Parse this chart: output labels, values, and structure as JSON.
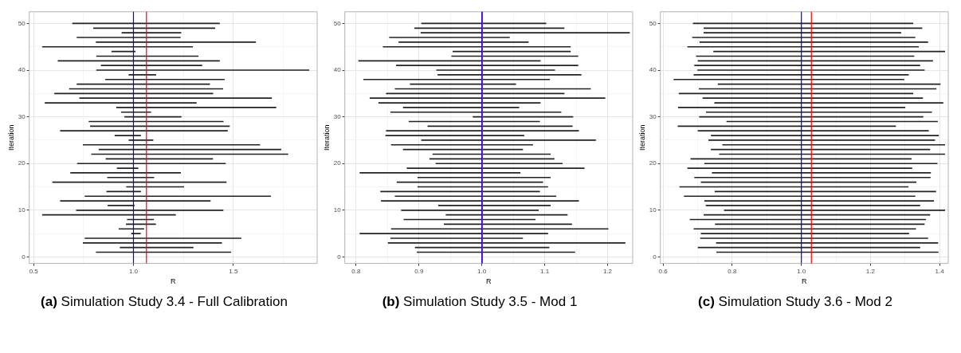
{
  "chart_data": [
    {
      "type": "bar",
      "orientation": "horizontal",
      "title": "(a) Simulation Study 3.4 - Full Calibration",
      "xlabel": "R",
      "ylabel": "Iteration",
      "grid": true,
      "color": "#222222",
      "xlim": [
        0.478,
        1.92
      ],
      "xticks": [
        0.5,
        {
          "value": 0.75,
          "label": null
        },
        {
          "value": 1,
          "label": "1.0"
        },
        {
          "value": 1.25,
          "label": null
        },
        1.5,
        {
          "value": 1.75,
          "label": null
        }
      ],
      "ylim": [
        -1.4,
        52.5
      ],
      "yticks": [
        0,
        {
          "value": 5,
          "label": null
        },
        10,
        {
          "value": 15,
          "label": null
        },
        20,
        {
          "value": 25,
          "label": null
        },
        30,
        {
          "value": 35,
          "label": null
        },
        40,
        {
          "value": 45,
          "label": null
        },
        50
      ],
      "x": [
        1,
        2,
        3,
        4,
        5,
        6,
        7,
        8,
        9,
        10,
        11,
        12,
        13,
        14,
        15,
        16,
        17,
        18,
        19,
        20,
        21,
        22,
        23,
        24,
        25,
        26,
        27,
        28,
        29,
        30,
        31,
        32,
        33,
        34,
        35,
        36,
        37,
        38,
        39,
        40,
        41,
        42,
        43,
        44,
        45,
        46,
        47,
        48,
        49,
        50
      ],
      "base": [
        0.813,
        0.933,
        0.748,
        0.757,
        0.99,
        0.927,
        0.964,
        0.969,
        0.544,
        0.714,
        0.872,
        0.634,
        0.757,
        0.866,
        0.965,
        0.595,
        0.87,
        0.685,
        0.918,
        0.719,
        0.862,
        0.79,
        0.827,
        0.748,
        0.977,
        0.907,
        0.634,
        0.784,
        0.777,
        0.956,
        0.939,
        0.915,
        0.557,
        0.73,
        0.605,
        0.679,
        0.717,
        0.86,
        0.977,
        0.815,
        0.838,
        0.622,
        0.815,
        0.891,
        0.544,
        0.813,
        0.717,
        0.942,
        0.8,
        0.695
      ],
      "values": [
        0.675,
        0.366,
        0.694,
        0.782,
        0.045,
        0.125,
        0.147,
        0.132,
        0.667,
        0.735,
        0.132,
        0.751,
        0.93,
        0.17,
        0.287,
        0.87,
        0.232,
        0.551,
        0.105,
        0.742,
        0.535,
        0.984,
        0.912,
        0.885,
        0.121,
        0.129,
        0.837,
        0.697,
        0.673,
        0.283,
        0.148,
        0.799,
        0.758,
        0.962,
        0.793,
        0.769,
        0.665,
        0.595,
        0.135,
        1.064,
        0.505,
        0.809,
        0.509,
        0.118,
        0.752,
        0.799,
        0.518,
        0.296,
        0.608,
        0.736
      ],
      "ref_lines": [
        {
          "axis": "x",
          "value": 1,
          "color": "#0000ff"
        },
        {
          "axis": "x",
          "value": 1.065,
          "color": "#ff0000"
        }
      ]
    },
    {
      "type": "bar",
      "orientation": "horizontal",
      "title": "(b) Simulation Study 3.5 - Mod 1",
      "xlabel": "R",
      "ylabel": "Iteration",
      "grid": true,
      "color": "#222222",
      "xlim": [
        0.782,
        1.24
      ],
      "xticks": [
        0.8,
        {
          "value": 0.85,
          "label": null
        },
        0.9,
        {
          "value": 0.95,
          "label": null
        },
        {
          "value": 1,
          "label": "1.0"
        },
        {
          "value": 1.05,
          "label": null
        },
        1.1,
        {
          "value": 1.15,
          "label": null
        },
        1.2
      ],
      "ylim": [
        -1.4,
        52.5
      ],
      "yticks": [
        0,
        {
          "value": 5,
          "label": null
        },
        10,
        {
          "value": 15,
          "label": null
        },
        20,
        {
          "value": 25,
          "label": null
        },
        30,
        {
          "value": 35,
          "label": null
        },
        40,
        {
          "value": 45,
          "label": null
        },
        50
      ],
      "x": [
        1,
        2,
        3,
        4,
        5,
        6,
        7,
        8,
        9,
        10,
        11,
        12,
        13,
        14,
        15,
        16,
        17,
        18,
        19,
        20,
        21,
        22,
        23,
        24,
        25,
        26,
        27,
        28,
        29,
        30,
        31,
        32,
        33,
        34,
        35,
        36,
        37,
        38,
        39,
        40,
        41,
        42,
        43,
        44,
        45,
        46,
        47,
        48,
        49,
        50
      ],
      "base": [
        0.897,
        0.894,
        0.851,
        0.855,
        0.806,
        0.856,
        0.94,
        0.876,
        0.943,
        0.872,
        0.931,
        0.84,
        0.862,
        0.839,
        0.898,
        0.865,
        0.898,
        0.806,
        0.881,
        0.927,
        0.917,
        0.922,
        0.875,
        0.856,
        0.904,
        0.847,
        0.848,
        0.914,
        0.884,
        0.986,
        0.855,
        0.875,
        0.836,
        0.822,
        0.848,
        0.862,
        0.886,
        0.812,
        0.93,
        0.928,
        0.864,
        0.804,
        0.952,
        0.954,
        0.843,
        0.868,
        0.853,
        0.903,
        0.893,
        0.904
      ],
      "values": [
        0.251,
        0.213,
        0.377,
        0.21,
        0.299,
        0.345,
        0.203,
        0.209,
        0.193,
        0.218,
        0.178,
        0.314,
        0.256,
        0.253,
        0.207,
        0.232,
        0.211,
        0.255,
        0.282,
        0.201,
        0.198,
        0.187,
        0.19,
        0.225,
        0.277,
        0.22,
        0.306,
        0.23,
        0.208,
        0.159,
        0.271,
        0.184,
        0.257,
        0.374,
        0.283,
        0.311,
        0.168,
        0.296,
        0.228,
        0.188,
        0.289,
        0.289,
        0.201,
        0.187,
        0.298,
        0.206,
        0.191,
        0.332,
        0.238,
        0.198
      ],
      "ref_lines": [
        {
          "axis": "x",
          "value": 1,
          "color": "#0000ff"
        },
        {
          "axis": "x",
          "value": 1.001,
          "color": "#ff0000"
        }
      ]
    },
    {
      "type": "bar",
      "orientation": "horizontal",
      "title": "(c) Simulation Study 3.6 - Mod 2",
      "xlabel": "R",
      "ylabel": "Iteration",
      "grid": true,
      "color": "#222222",
      "xlim": [
        0.592,
        1.425
      ],
      "xticks": [
        0.6,
        {
          "value": 0.7,
          "label": null
        },
        0.8,
        {
          "value": 0.9,
          "label": null
        },
        {
          "value": 1,
          "label": "1.0"
        },
        {
          "value": 1.1,
          "label": null
        },
        1.2,
        {
          "value": 1.3,
          "label": null
        },
        1.4
      ],
      "ylim": [
        -1.4,
        52.5
      ],
      "yticks": [
        0,
        {
          "value": 5,
          "label": null
        },
        10,
        {
          "value": 15,
          "label": null
        },
        20,
        {
          "value": 25,
          "label": null
        },
        30,
        {
          "value": 35,
          "label": null
        },
        40,
        {
          "value": 45,
          "label": null
        },
        50
      ],
      "x": [
        1,
        2,
        3,
        4,
        5,
        6,
        7,
        8,
        9,
        10,
        11,
        12,
        13,
        14,
        15,
        16,
        17,
        18,
        19,
        20,
        21,
        22,
        23,
        24,
        25,
        26,
        27,
        28,
        29,
        30,
        31,
        32,
        33,
        34,
        35,
        36,
        37,
        38,
        39,
        40,
        41,
        42,
        43,
        44,
        45,
        46,
        47,
        48,
        49,
        50
      ],
      "base": [
        0.755,
        0.701,
        0.754,
        0.708,
        0.71,
        0.689,
        0.751,
        0.678,
        0.718,
        0.777,
        0.724,
        0.72,
        0.661,
        0.75,
        0.648,
        0.71,
        0.691,
        0.742,
        0.671,
        0.72,
        0.68,
        0.763,
        0.739,
        0.772,
        0.732,
        0.739,
        0.701,
        0.643,
        0.784,
        0.705,
        0.725,
        0.644,
        0.749,
        0.715,
        0.646,
        0.704,
        0.759,
        0.631,
        0.689,
        0.7,
        0.691,
        0.701,
        0.696,
        0.746,
        0.671,
        0.706,
        0.685,
        0.718,
        0.718,
        0.687
      ],
      "values": [
        0.641,
        0.642,
        0.641,
        0.658,
        0.601,
        0.642,
        0.605,
        0.682,
        0.654,
        0.638,
        0.619,
        0.663,
        0.668,
        0.639,
        0.661,
        0.622,
        0.682,
        0.632,
        0.649,
        0.673,
        0.638,
        0.652,
        0.633,
        0.643,
        0.654,
        0.658,
        0.667,
        0.63,
        0.61,
        0.647,
        0.652,
        0.656,
        0.661,
        0.636,
        0.677,
        0.686,
        0.643,
        0.666,
        0.621,
        0.656,
        0.652,
        0.679,
        0.63,
        0.669,
        0.668,
        0.66,
        0.644,
        0.57,
        0.631,
        0.636
      ],
      "ref_lines": [
        {
          "axis": "x",
          "value": 1,
          "color": "#0000ff"
        },
        {
          "axis": "x",
          "value": 1.029,
          "color": "#ff0000"
        }
      ]
    }
  ]
}
